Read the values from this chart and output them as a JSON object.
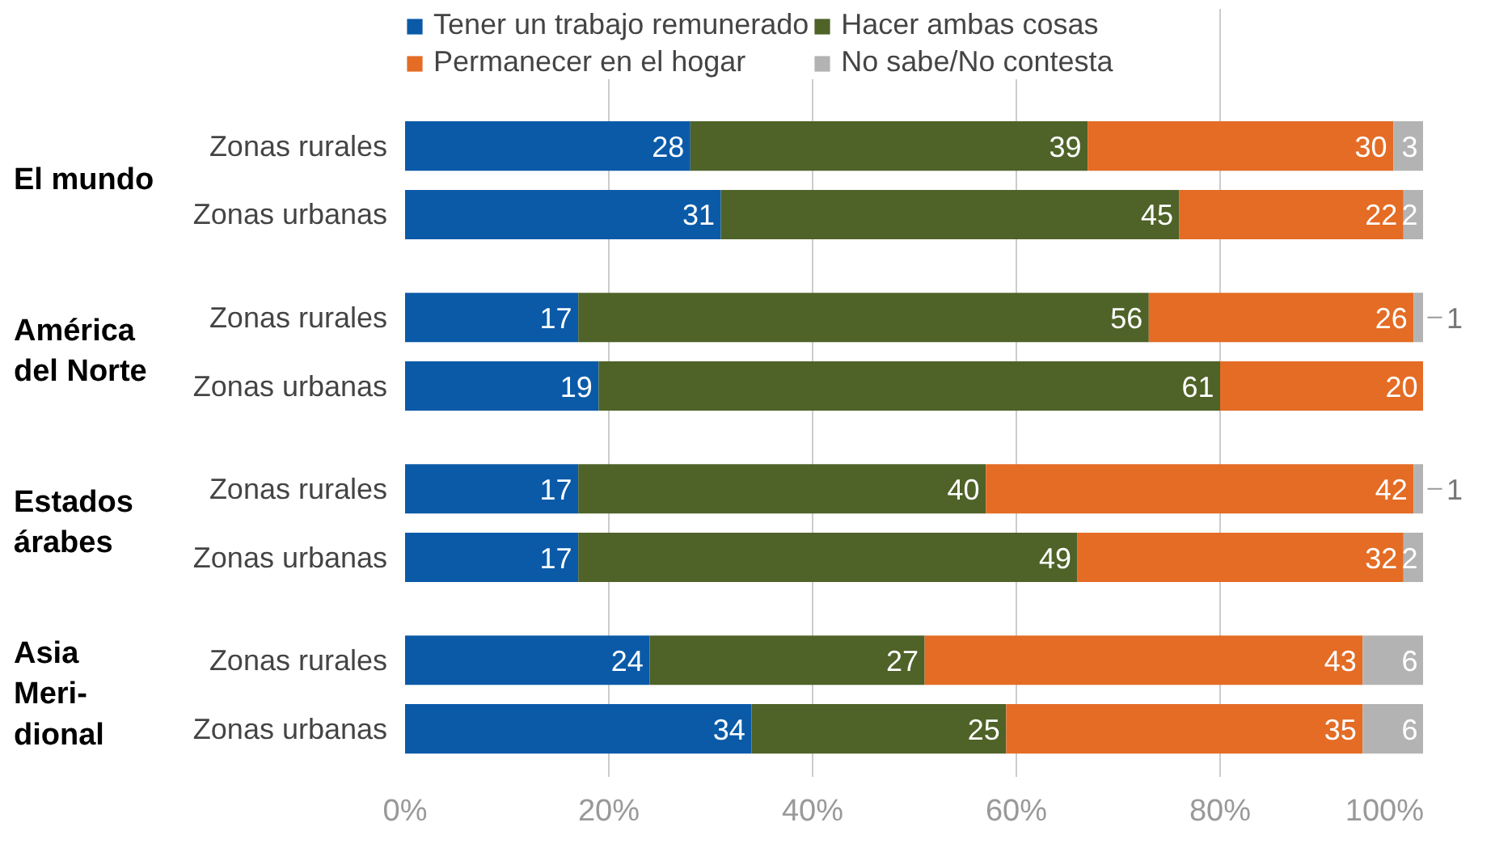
{
  "chart_data": {
    "type": "bar",
    "orientation": "horizontal",
    "stacked": true,
    "categories": [
      "Zonas rurales",
      "Zonas urbanas",
      "Zonas rurales",
      "Zonas urbanas",
      "Zonas rurales",
      "Zonas urbanas",
      "Zonas rurales",
      "Zonas urbanas"
    ],
    "series": [
      {
        "name": "Tener un trabajo remunerado",
        "color": "#0a5aa8",
        "values": [
          28,
          31,
          17,
          19,
          17,
          17,
          24,
          34
        ]
      },
      {
        "name": "Hacer ambas cosas",
        "color": "#4f6228",
        "values": [
          39,
          45,
          56,
          61,
          40,
          49,
          27,
          25
        ]
      },
      {
        "name": "Permanecer en el hogar",
        "color": "#e46c25",
        "values": [
          30,
          22,
          26,
          20,
          42,
          32,
          43,
          35
        ]
      },
      {
        "name": "No sabe/No contesta",
        "color": "#b3b3b3",
        "values": [
          3,
          2,
          1,
          null,
          1,
          2,
          6,
          6
        ]
      }
    ],
    "annotations": [
      "El mundo",
      "América\ndel Norte",
      "Estados\nárabes",
      "Asia\nMeri-\ndional"
    ],
    "xlim": [
      0,
      100
    ],
    "xticks": [
      {
        "value": 0,
        "label": "0%"
      },
      {
        "value": 20,
        "label": "20%"
      },
      {
        "value": 40,
        "label": "40%"
      },
      {
        "value": 60,
        "label": "60%"
      },
      {
        "value": 80,
        "label": "80%"
      },
      {
        "value": 100,
        "label": "100%"
      }
    ],
    "grid": "x",
    "legend": "top",
    "data_labels": true
  }
}
